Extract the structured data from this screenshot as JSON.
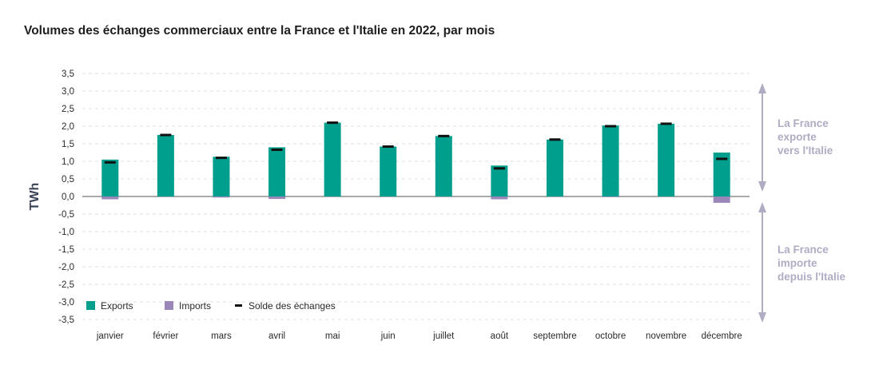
{
  "chart_data": {
    "type": "bar",
    "title": "Volumes des échanges commerciaux entre la France et l'Italie en 2022, par mois",
    "ylabel": "TWh",
    "xlabel": "",
    "ylim": [
      -3.5,
      3.5
    ],
    "yticks": [
      "3,5",
      "3,0",
      "2,5",
      "2,0",
      "1,5",
      "1,0",
      "0,5",
      "0,0",
      "-0,5",
      "-1,0",
      "-1,5",
      "-2,0",
      "-2,5",
      "-3,0",
      "-3,5"
    ],
    "ytick_values": [
      3.5,
      3.0,
      2.5,
      2.0,
      1.5,
      1.0,
      0.5,
      0.0,
      -0.5,
      -1.0,
      -1.5,
      -2.0,
      -2.5,
      -3.0,
      -3.5
    ],
    "grid": true,
    "legend_position": "bottom-left",
    "categories": [
      "janvier",
      "février",
      "mars",
      "avril",
      "mai",
      "juin",
      "juillet",
      "août",
      "septembre",
      "octobre",
      "novembre",
      "décembre"
    ],
    "series": [
      {
        "name": "Exports",
        "kind": "bar",
        "color": "#009e8c",
        "values": [
          1.05,
          1.75,
          1.13,
          1.4,
          2.1,
          1.42,
          1.72,
          0.88,
          1.62,
          2.02,
          2.07,
          1.25
        ]
      },
      {
        "name": "Imports",
        "kind": "bar",
        "color": "#9a86b9",
        "values": [
          -0.08,
          0.0,
          -0.03,
          -0.07,
          0.0,
          0.0,
          0.0,
          -0.08,
          0.0,
          -0.02,
          0.0,
          -0.18
        ]
      },
      {
        "name": "Solde des échanges",
        "kind": "marker",
        "color": "#111111",
        "values": [
          0.97,
          1.75,
          1.1,
          1.33,
          2.1,
          1.42,
          1.72,
          0.8,
          1.62,
          2.0,
          2.07,
          1.07
        ]
      }
    ],
    "annotations": {
      "top": [
        "La France",
        "exporte",
        "vers l'Italie"
      ],
      "bottom": [
        "La France",
        "importe",
        "depuis l'Italie"
      ]
    },
    "colors": {
      "arrow": "#b0acc4",
      "grid": "#e2e2e2",
      "axis": "#555555"
    }
  }
}
